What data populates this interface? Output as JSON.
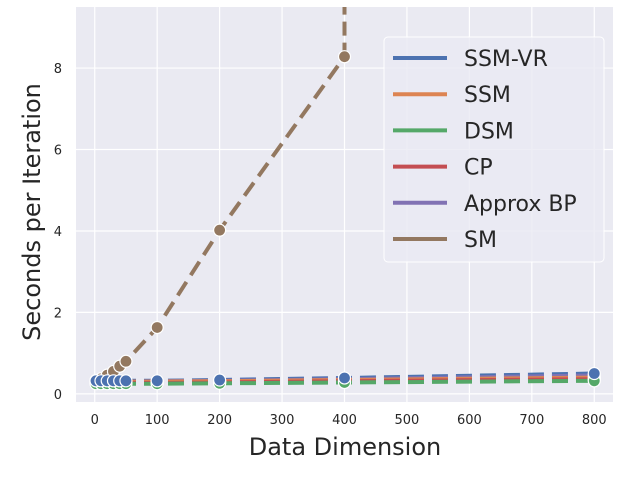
{
  "chart_data": {
    "type": "line",
    "xlabel": "Data Dimension",
    "ylabel": "Seconds per Iteration",
    "xlim": [
      -30,
      830
    ],
    "ylim": [
      -0.2,
      9.5
    ],
    "xticks": [
      0,
      100,
      200,
      300,
      400,
      500,
      600,
      700,
      800
    ],
    "yticks": [
      0,
      2,
      4,
      6,
      8
    ],
    "grid": true,
    "legend_position": "top-right",
    "series": [
      {
        "name": "SSM-VR",
        "color": "#4c72b0",
        "x": [
          2,
          10,
          20,
          30,
          40,
          50,
          100,
          200,
          400,
          800
        ],
        "y": [
          0.32,
          0.32,
          0.32,
          0.32,
          0.32,
          0.32,
          0.32,
          0.34,
          0.39,
          0.5
        ]
      },
      {
        "name": "SSM",
        "color": "#dd8452",
        "x": [
          2,
          10,
          20,
          30,
          40,
          50,
          100,
          200,
          400,
          800
        ],
        "y": [
          0.3,
          0.3,
          0.3,
          0.3,
          0.3,
          0.3,
          0.3,
          0.31,
          0.34,
          0.4
        ]
      },
      {
        "name": "DSM",
        "color": "#55a868",
        "x": [
          2,
          10,
          20,
          30,
          40,
          50,
          100,
          200,
          400,
          800
        ],
        "y": [
          0.25,
          0.25,
          0.25,
          0.25,
          0.25,
          0.25,
          0.25,
          0.26,
          0.28,
          0.32
        ]
      },
      {
        "name": "CP",
        "color": "#c44e52",
        "x": [
          2,
          10,
          20,
          30,
          40,
          50,
          100,
          200,
          400,
          800
        ],
        "y": [
          0.27,
          0.27,
          0.27,
          0.27,
          0.27,
          0.27,
          0.27,
          0.28,
          0.31,
          0.36
        ]
      },
      {
        "name": "Approx BP",
        "color": "#8172b3",
        "x": [
          2,
          10,
          20,
          30,
          40,
          50,
          100,
          200,
          400,
          800
        ],
        "y": [
          0.3,
          0.3,
          0.3,
          0.3,
          0.3,
          0.3,
          0.31,
          0.32,
          0.36,
          0.45
        ]
      },
      {
        "name": "SM",
        "color": "#937860",
        "x": [
          2,
          10,
          20,
          30,
          40,
          50,
          100,
          200,
          400
        ],
        "y": [
          0.33,
          0.37,
          0.46,
          0.55,
          0.68,
          0.8,
          1.63,
          4.02,
          8.28
        ],
        "extends_off_top": true
      }
    ],
    "marker_x": [
      2,
      10,
      20,
      30,
      40,
      50,
      100,
      200,
      400,
      800
    ]
  }
}
